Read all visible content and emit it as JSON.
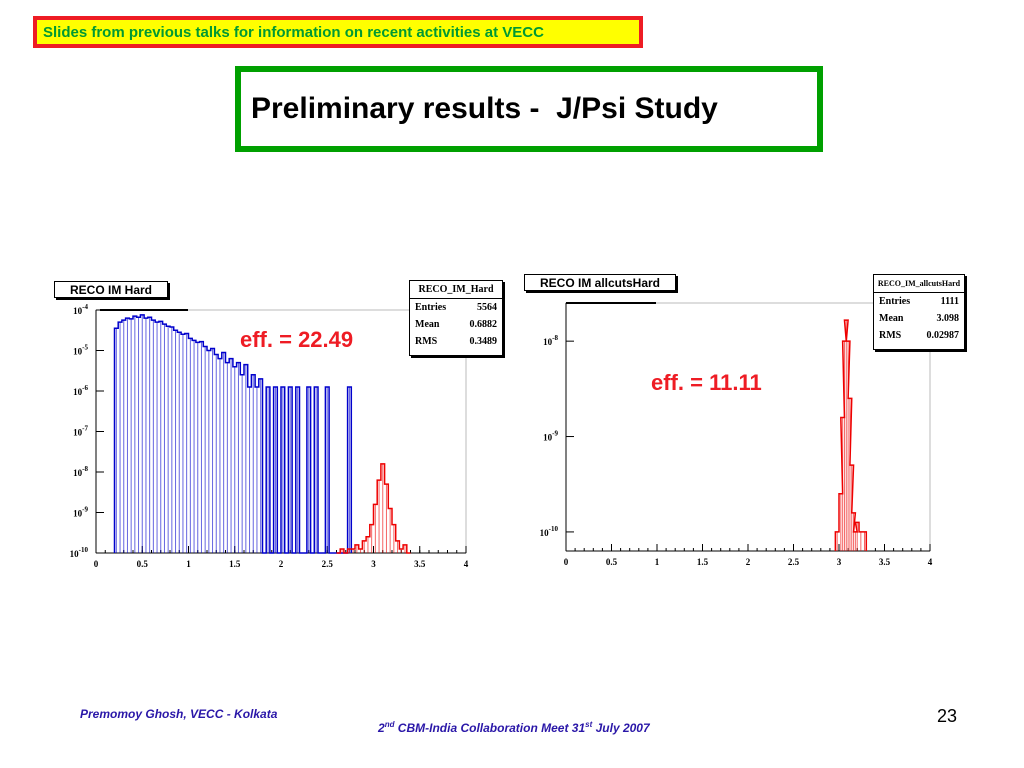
{
  "banner": {
    "text": "Slides from previous talks for information on recent activities at VECC"
  },
  "title": {
    "text": "Preliminary results -  J/Psi Study"
  },
  "footer": {
    "author": "Premomoy Ghosh, VECC - Kolkata",
    "meeting_pre": "2",
    "meeting_sup1": "nd",
    "meeting_mid": " CBM-India Collaboration Meet 31",
    "meeting_sup2": "st",
    "meeting_post": " July 2007",
    "page_number": "23"
  },
  "colors": {
    "banner_bg": "#ffff00",
    "banner_border": "#ee1c24",
    "banner_text": "#009933",
    "title_border": "#00a000",
    "blue_hist": "#0000cc",
    "red_hist": "#ee0000",
    "eff_text": "#ee1c24",
    "footer_text": "#2a17a8"
  },
  "chart_data": [
    {
      "type": "histogram",
      "title": "RECO IM Hard",
      "efficiency_label": "eff. = 22.49",
      "xlim": [
        0,
        4
      ],
      "ylim_log10": [
        -10,
        -4
      ],
      "log_y": true,
      "x_ticks": [
        "0",
        "0.5",
        "1",
        "1.5",
        "2",
        "2.5",
        "3",
        "3.5",
        "4"
      ],
      "y_ticks": [
        {
          "base": "10",
          "exp": "-4"
        },
        {
          "base": "10",
          "exp": "-5"
        },
        {
          "base": "10",
          "exp": "-6"
        },
        {
          "base": "10",
          "exp": "-7"
        },
        {
          "base": "10",
          "exp": "-8"
        },
        {
          "base": "10",
          "exp": "-9"
        },
        {
          "base": "10",
          "exp": "-10"
        }
      ],
      "stats": {
        "name": "RECO_IM_Hard",
        "entries_label": "Entries",
        "entries": "5564",
        "mean_label": "Mean",
        "mean": "0.6882",
        "rms_label": "RMS",
        "rms": "0.3489"
      },
      "series": [
        {
          "color": "#0000cc",
          "x": [
            0.22,
            0.26,
            0.3,
            0.34,
            0.38,
            0.42,
            0.46,
            0.5,
            0.54,
            0.58,
            0.62,
            0.66,
            0.7,
            0.74,
            0.78,
            0.82,
            0.86,
            0.9,
            0.94,
            0.98,
            1.02,
            1.06,
            1.1,
            1.14,
            1.18,
            1.22,
            1.26,
            1.3,
            1.34,
            1.38,
            1.42,
            1.46,
            1.5,
            1.54,
            1.58,
            1.62,
            1.66,
            1.7,
            1.74,
            1.78,
            1.82,
            1.86,
            1.9,
            1.94,
            1.98,
            2.02,
            2.06,
            2.1,
            2.14,
            2.18,
            2.22,
            2.26,
            2.3,
            2.34,
            2.38,
            2.42,
            2.46,
            2.5,
            2.54,
            2.58,
            2.62,
            2.66,
            2.7,
            2.74
          ],
          "log10_y": [
            -4.45,
            -4.3,
            -4.25,
            -4.2,
            -4.22,
            -4.15,
            -4.18,
            -4.12,
            -4.2,
            -4.18,
            -4.25,
            -4.3,
            -4.28,
            -4.35,
            -4.4,
            -4.42,
            -4.5,
            -4.55,
            -4.6,
            -4.58,
            -4.7,
            -4.75,
            -4.8,
            -4.78,
            -4.9,
            -5.0,
            -4.95,
            -5.1,
            -5.2,
            -5.05,
            -5.3,
            -5.2,
            -5.4,
            -5.3,
            -5.6,
            -5.35,
            -5.9,
            -5.6,
            -5.9,
            -5.7,
            -10,
            -5.9,
            -10,
            -5.9,
            -10,
            -5.9,
            -10,
            -5.9,
            -10,
            -5.9,
            -10,
            -10,
            -5.9,
            -10,
            -5.9,
            -10,
            -10,
            -5.9,
            -10,
            -10,
            -10,
            -10,
            -10,
            -5.9
          ]
        },
        {
          "color": "#ee0000",
          "x": [
            2.62,
            2.66,
            2.7,
            2.74,
            2.78,
            2.82,
            2.86,
            2.9,
            2.94,
            2.98,
            3.02,
            3.06,
            3.1,
            3.14,
            3.18,
            3.22,
            3.26,
            3.3,
            3.34,
            3.38
          ],
          "log10_y": [
            -10,
            -9.9,
            -10,
            -9.9,
            -9.9,
            -9.8,
            -9.9,
            -9.7,
            -9.6,
            -9.3,
            -8.8,
            -8.2,
            -7.8,
            -8.3,
            -8.9,
            -9.3,
            -9.7,
            -9.9,
            -9.8,
            -10
          ]
        }
      ]
    },
    {
      "type": "histogram",
      "title": "RECO IM allcutsHard",
      "efficiency_label": "eff. = 11.11",
      "xlim": [
        0,
        4
      ],
      "ylim_log10": [
        -10.2,
        -7.6
      ],
      "log_y": true,
      "x_ticks": [
        "0",
        "0.5",
        "1",
        "1.5",
        "2",
        "2.5",
        "3",
        "3.5",
        "4"
      ],
      "y_ticks": [
        {
          "base": "10",
          "exp": "-8"
        },
        {
          "base": "10",
          "exp": "-9"
        },
        {
          "base": "10",
          "exp": "-10"
        }
      ],
      "stats": {
        "name": "RECO_IM_allcutsHard",
        "entries_label": "Entries",
        "entries": "1111",
        "mean_label": "Mean",
        "mean": "3.098",
        "rms_label": "RMS",
        "rms": "0.02987"
      },
      "series": [
        {
          "color": "#ee0000",
          "x": [
            2.98,
            3.02,
            3.04,
            3.06,
            3.08,
            3.1,
            3.12,
            3.14,
            3.16,
            3.18,
            3.2,
            3.24,
            3.28
          ],
          "log10_y": [
            -10.0,
            -9.6,
            -8.8,
            -8.0,
            -7.78,
            -8.0,
            -8.6,
            -9.3,
            -9.8,
            -10.0,
            -9.9,
            -10.0,
            -10.0
          ]
        }
      ]
    }
  ]
}
